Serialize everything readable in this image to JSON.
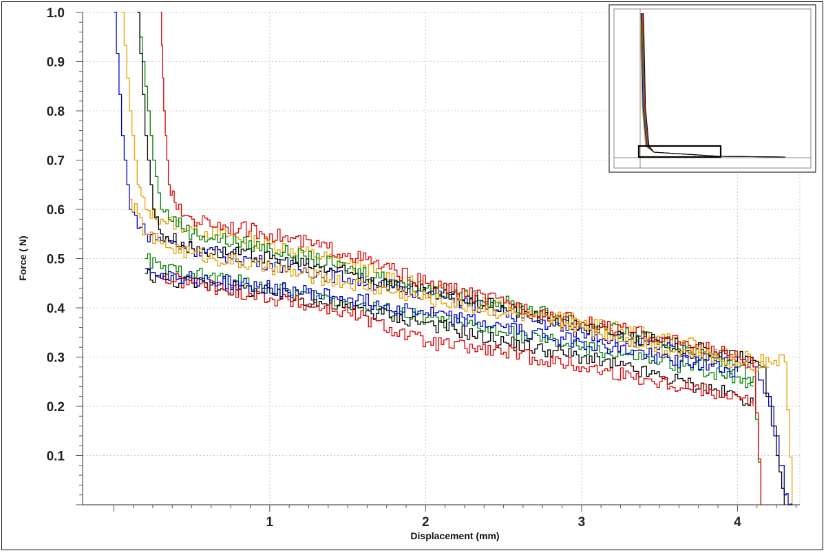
{
  "chart_data": {
    "type": "line",
    "title": "",
    "xlabel": "Displacement (mm)",
    "ylabel": "Force ( N)",
    "xlim": [
      -0.2,
      4.4
    ],
    "ylim": [
      0,
      1.0
    ],
    "x_ticks": [
      "1",
      "2",
      "3",
      "4"
    ],
    "y_ticks": [
      "0.1",
      "0.2",
      "0.3",
      "0.4",
      "0.5",
      "0.6",
      "0.7",
      "0.8",
      "0.9",
      "1.0"
    ],
    "grid": true,
    "legend": "none",
    "inset": "overview of full curves with zoom rectangle, top-right",
    "series": [
      {
        "color": "#e8a000",
        "x": [
          0.05,
          0.1,
          0.15,
          0.2,
          0.3,
          0.5,
          1.0,
          1.5,
          2.0,
          2.5,
          3.0,
          3.5,
          4.0,
          4.2,
          4.3,
          4.35
        ],
        "y": [
          1.0,
          0.8,
          0.65,
          0.6,
          0.58,
          0.56,
          0.53,
          0.49,
          0.44,
          0.41,
          0.37,
          0.34,
          0.3,
          0.29,
          0.29,
          0.0
        ]
      },
      {
        "color": "#0000cc",
        "x": [
          0.0,
          0.05,
          0.1,
          0.2,
          0.5,
          1.0,
          1.5,
          2.0,
          2.5,
          3.0,
          3.5,
          4.0,
          4.1,
          4.2,
          4.3,
          4.35
        ],
        "y": [
          1.0,
          0.75,
          0.6,
          0.55,
          0.52,
          0.49,
          0.46,
          0.43,
          0.39,
          0.35,
          0.32,
          0.29,
          0.28,
          0.2,
          0.02,
          0.0
        ]
      },
      {
        "color": "#008000",
        "x": [
          0.15,
          0.2,
          0.25,
          0.3,
          0.5,
          1.0,
          1.5,
          2.0,
          2.5,
          3.0,
          3.5,
          4.0,
          4.1,
          4.15
        ],
        "y": [
          1.0,
          0.85,
          0.7,
          0.6,
          0.55,
          0.52,
          0.48,
          0.44,
          0.41,
          0.37,
          0.33,
          0.28,
          0.26,
          0.0
        ]
      },
      {
        "color": "#000000",
        "x": [
          0.15,
          0.2,
          0.25,
          0.3,
          0.5,
          1.0,
          1.5,
          2.0,
          2.5,
          3.0,
          3.5,
          4.0,
          4.15,
          4.25,
          4.3
        ],
        "y": [
          1.0,
          0.75,
          0.6,
          0.55,
          0.52,
          0.5,
          0.47,
          0.43,
          0.4,
          0.36,
          0.33,
          0.3,
          0.28,
          0.1,
          0.0
        ]
      },
      {
        "color": "#dd0000",
        "x": [
          0.3,
          0.32,
          0.35,
          0.4,
          0.5,
          1.0,
          1.5,
          2.0,
          2.5,
          3.0,
          3.5,
          4.0,
          4.1,
          4.15
        ],
        "y": [
          1.0,
          0.8,
          0.65,
          0.6,
          0.58,
          0.55,
          0.51,
          0.45,
          0.41,
          0.37,
          0.34,
          0.3,
          0.28,
          0.0
        ]
      },
      {
        "color": "#e8a000",
        "x": [
          0.1,
          0.2,
          0.3,
          0.5,
          1.0,
          1.5,
          2.0,
          2.5,
          3.0,
          3.5,
          4.0,
          4.2
        ],
        "y": [
          0.62,
          0.55,
          0.53,
          0.51,
          0.48,
          0.45,
          0.42,
          0.39,
          0.36,
          0.32,
          0.29,
          0.28
        ]
      },
      {
        "color": "#008000",
        "x": [
          0.2,
          0.3,
          0.5,
          1.0,
          1.5,
          2.0,
          2.5,
          3.0,
          3.5,
          4.0,
          4.1
        ],
        "y": [
          0.5,
          0.48,
          0.47,
          0.44,
          0.41,
          0.38,
          0.35,
          0.32,
          0.29,
          0.26,
          0.24
        ]
      },
      {
        "color": "#000000",
        "x": [
          0.2,
          0.3,
          0.5,
          1.0,
          1.5,
          2.0,
          2.5,
          3.0,
          3.5,
          4.0,
          4.1
        ],
        "y": [
          0.47,
          0.46,
          0.45,
          0.43,
          0.4,
          0.37,
          0.33,
          0.3,
          0.26,
          0.22,
          0.21
        ]
      },
      {
        "color": "#dd0000",
        "x": [
          0.3,
          0.5,
          1.0,
          1.5,
          2.0,
          2.5,
          3.0,
          3.5,
          4.0,
          4.1
        ],
        "y": [
          0.46,
          0.45,
          0.42,
          0.39,
          0.33,
          0.31,
          0.28,
          0.25,
          0.22,
          0.2
        ]
      },
      {
        "color": "#0000cc",
        "x": [
          0.2,
          0.3,
          0.5,
          1.0,
          1.5,
          2.0,
          2.5,
          3.0,
          3.5,
          4.0
        ],
        "y": [
          0.48,
          0.47,
          0.46,
          0.44,
          0.42,
          0.39,
          0.36,
          0.33,
          0.3,
          0.27
        ]
      }
    ]
  }
}
